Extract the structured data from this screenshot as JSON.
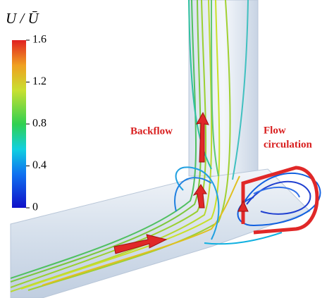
{
  "colorbar": {
    "title": "U / Ū",
    "lim": [
      0,
      1.6
    ],
    "ticks": [
      0,
      0.4,
      0.8,
      1.2,
      1.6
    ]
  },
  "annotations": {
    "backflow": "Backflow",
    "circulation": [
      "Flow",
      "circulation"
    ]
  }
}
